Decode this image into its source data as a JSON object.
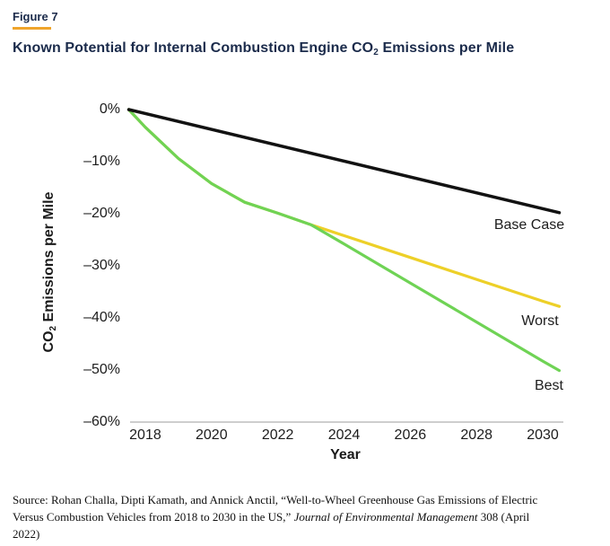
{
  "header": {
    "kicker": "Figure 7",
    "title_prefix": "Known Potential for Internal Combustion Engine CO",
    "title_subscript": "2",
    "title_suffix": " Emissions per Mile",
    "accent_color": "#efa42b",
    "title_color": "#1b2b4b"
  },
  "chart_data": {
    "type": "line",
    "title": "Known Potential for Internal Combustion Engine CO2 Emissions per Mile",
    "xlabel": "Year",
    "ylabel_prefix": "CO",
    "ylabel_subscript": "2",
    "ylabel_suffix": " Emissions per Mile",
    "xlim": [
      2017.5,
      2030.5
    ],
    "ylim": [
      -60,
      0
    ],
    "grid": false,
    "legend_position": "inline-right",
    "axis_color": "#b0b0b0",
    "x_ticks": {
      "values": [
        2018,
        2020,
        2022,
        2024,
        2026,
        2028,
        2030
      ],
      "labels": [
        "2018",
        "2020",
        "2022",
        "2024",
        "2026",
        "2028",
        "2030"
      ]
    },
    "y_ticks": {
      "values": [
        0,
        -10,
        -20,
        -30,
        -40,
        -50,
        -60
      ],
      "labels": [
        "0%",
        "–10%",
        "–20%",
        "–30%",
        "–40%",
        "–50%",
        "–60%"
      ]
    },
    "series": [
      {
        "name": "Worst",
        "color": "#edd028",
        "points": [
          [
            2017.5,
            0
          ],
          [
            2018,
            -3.4
          ],
          [
            2019,
            -9.4
          ],
          [
            2020,
            -14.2
          ],
          [
            2021,
            -17.8
          ],
          [
            2022,
            -19.9
          ],
          [
            2023,
            -22.1
          ],
          [
            2024,
            -24.2
          ],
          [
            2026,
            -28.4
          ],
          [
            2028,
            -32.6
          ],
          [
            2030,
            -36.8
          ],
          [
            2030.5,
            -37.8
          ]
        ]
      },
      {
        "name": "Best",
        "color": "#6fd355",
        "points": [
          [
            2017.5,
            0
          ],
          [
            2018,
            -3.4
          ],
          [
            2019,
            -9.4
          ],
          [
            2020,
            -14.2
          ],
          [
            2021,
            -17.8
          ],
          [
            2022,
            -19.9
          ],
          [
            2023,
            -22.1
          ],
          [
            2024,
            -25.8
          ],
          [
            2026,
            -33.3
          ],
          [
            2028,
            -40.8
          ],
          [
            2030,
            -48.3
          ],
          [
            2030.5,
            -50.1
          ]
        ]
      },
      {
        "name": "Base Case",
        "color": "#121212",
        "points": [
          [
            2017.5,
            0
          ],
          [
            2030.5,
            -19.8
          ]
        ]
      }
    ]
  },
  "footer": {
    "source_text1": "Source: Rohan Challa, Dipti Kamath, and Annick Anctil, “Well-to-Wheel Greenhouse Gas Emissions of Electric Versus Combustion Vehicles from 2018 to 2030 in the US,” ",
    "source_journal": "Journal of Environmental Management",
    "source_text2": " 308 (April 2022)"
  }
}
